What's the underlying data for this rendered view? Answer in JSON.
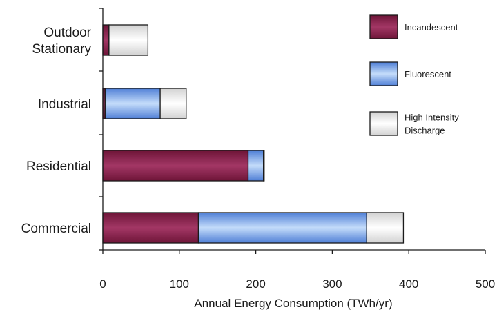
{
  "chart_data": {
    "type": "bar",
    "orientation": "horizontal",
    "stacked": true,
    "title": "",
    "xlabel": "Annual Energy Consumption (TWh/yr)",
    "ylabel": "",
    "categories": [
      [
        "Outdoor",
        "Stationary"
      ],
      [
        "Industrial"
      ],
      [
        "Residential"
      ],
      [
        "Commercial"
      ]
    ],
    "series": [
      {
        "name": "Incandescent",
        "color": "#8a1f4a",
        "values": [
          8,
          3,
          190,
          125
        ]
      },
      {
        "name": "Fluorescent",
        "color": "#7fa6e8",
        "values": [
          0,
          72,
          20,
          220
        ]
      },
      {
        "name": "High Intensity Discharge",
        "color": "#ececec",
        "values": [
          51,
          34,
          1,
          48
        ]
      }
    ],
    "legend_labels": [
      [
        "Incandescent"
      ],
      [
        "Fluorescent"
      ],
      [
        "High Intensity",
        "Discharge"
      ]
    ],
    "xlim": [
      0,
      500
    ],
    "xticks": [
      "0",
      "100",
      "200",
      "300",
      "400",
      "500"
    ],
    "grid": false,
    "legend_position": "top-right"
  }
}
